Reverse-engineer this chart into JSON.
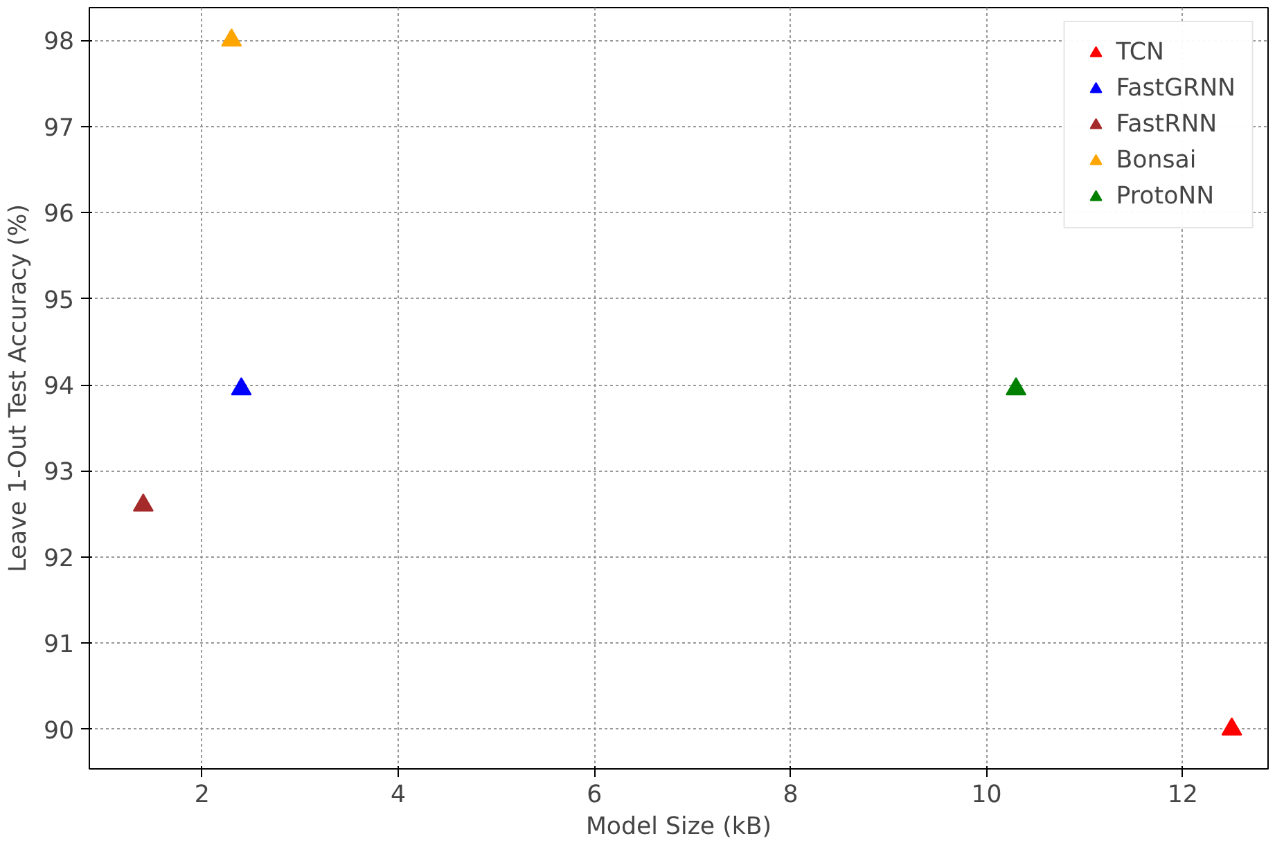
{
  "chart_data": {
    "type": "scatter",
    "xlabel": "Model Size (kB)",
    "ylabel": "Leave 1-Out Test Accuracy (%)",
    "xlim": [
      0.85,
      12.87
    ],
    "ylim": [
      89.54,
      98.38
    ],
    "xticks": [
      2,
      4,
      6,
      8,
      10,
      12
    ],
    "yticks": [
      90,
      91,
      92,
      93,
      94,
      95,
      96,
      97,
      98
    ],
    "grid": true,
    "legend": "top right",
    "marker": "triangle",
    "series": [
      {
        "name": "TCN",
        "color": "#ff0000",
        "x": [
          12.5
        ],
        "values": [
          90.0
        ]
      },
      {
        "name": "FastGRNN",
        "color": "#0000ff",
        "x": [
          2.4
        ],
        "values": [
          93.95
        ]
      },
      {
        "name": "FastRNN",
        "color": "#a52a2a",
        "x": [
          1.4
        ],
        "values": [
          92.6
        ]
      },
      {
        "name": "Bonsai",
        "color": "#ffa500",
        "x": [
          2.3
        ],
        "values": [
          98.0
        ]
      },
      {
        "name": "ProtoNN",
        "color": "#008000",
        "x": [
          10.3
        ],
        "values": [
          93.95
        ]
      }
    ]
  }
}
